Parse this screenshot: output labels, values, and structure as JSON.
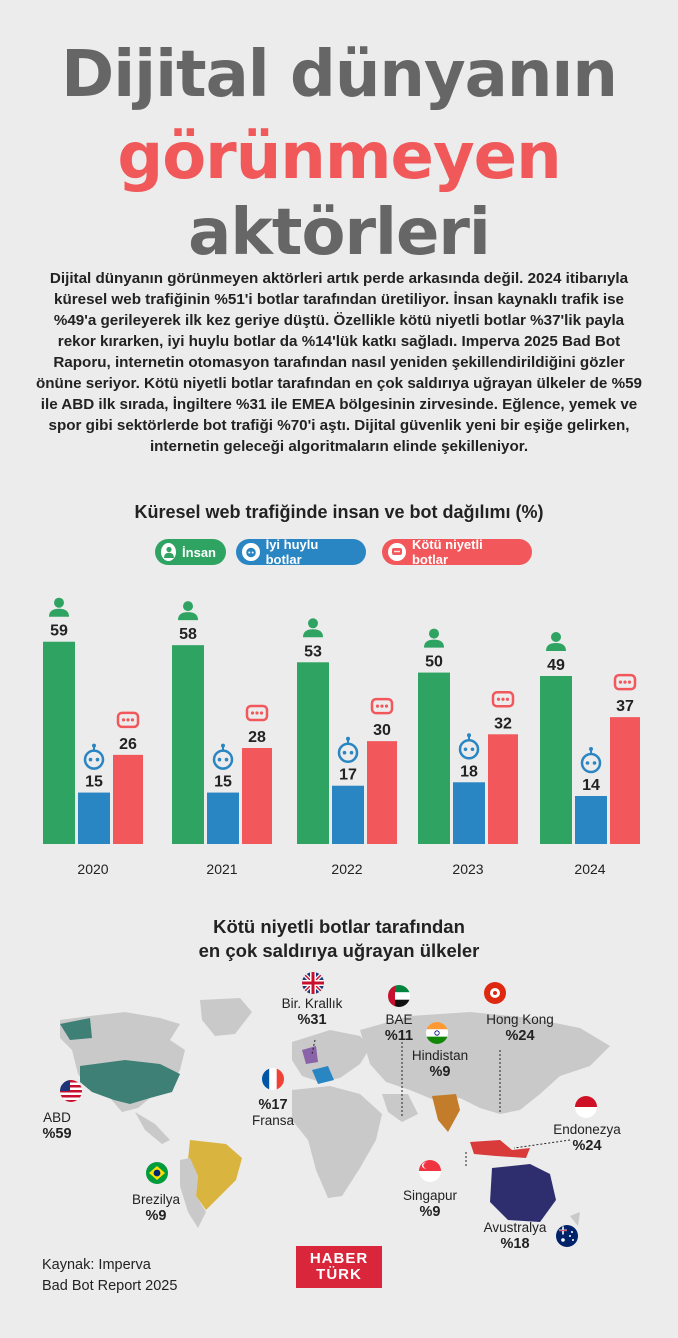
{
  "title": {
    "line1": "Dijital dünyanın",
    "line2": "görünmeyen",
    "line3": "aktörleri"
  },
  "intro": "Dijital dünyanın görünmeyen aktörleri artık perde arkasında değil. 2024 itibarıyla küresel web trafiğinin %51'i botlar tarafından üretiliyor. İnsan kaynaklı trafik ise %49'a gerileyerek ilk kez geriye düştü. Özellikle kötü niyetli botlar %37'lik payla rekor kırarken, iyi huylu botlar da %14'lük katkı sağladı. Imperva 2025 Bad Bot Raporu, internetin otomasyon tarafından nasıl yeniden şekillendirildiğini gözler önüne seriyor. Kötü niyetli botlar tarafından en çok saldırıya uğrayan ülkeler de %59 ile ABD ilk sırada, İngiltere %31 ile EMEA bölgesinin zirvesinde. Eğlence, yemek ve spor gibi sektörlerde bot trafiği %70'i aştı. Dijital güvenlik yeni bir eşiğe gelirken, internetin geleceği algoritmaların elinde şekilleniyor.",
  "chart_data": {
    "type": "bar",
    "title": "Küresel web trafiğinde insan ve bot dağılımı (%)",
    "categories": [
      "2020",
      "2021",
      "2022",
      "2023",
      "2024"
    ],
    "series": [
      {
        "name": "İnsan",
        "color": "#2fa462",
        "values": [
          59,
          58,
          53,
          50,
          49
        ]
      },
      {
        "name": "İyi huylu botlar",
        "color": "#2a86c2",
        "values": [
          15,
          15,
          17,
          18,
          14
        ]
      },
      {
        "name": "Kötü niyetli botlar",
        "color": "#f2585b",
        "values": [
          26,
          28,
          30,
          32,
          37
        ]
      }
    ],
    "ylim": [
      0,
      70
    ],
    "xlabel": "",
    "ylabel": ""
  },
  "legend": {
    "human": "İnsan",
    "good": "İyi huylu botlar",
    "bad": "Kötü niyetli botlar"
  },
  "colors": {
    "human": "#2fa462",
    "good": "#2a86c2",
    "bad": "#f2585b",
    "title_red": "#f0585a",
    "title_grey": "#666666"
  },
  "map": {
    "title_line1": "Kötü niyetli botlar tarafından",
    "title_line2": "en çok saldırıya uğrayan ülkeler",
    "countries": [
      {
        "name": "ABD",
        "value": "%59"
      },
      {
        "name": "Bir. Krallık",
        "value": "%31"
      },
      {
        "name": "BAE",
        "value": "%11"
      },
      {
        "name": "Hong Kong",
        "value": "%24"
      },
      {
        "name": "Hindistan",
        "value": "%9"
      },
      {
        "name": "Fransa",
        "value": "%17"
      },
      {
        "name": "Endonezya",
        "value": "%24"
      },
      {
        "name": "Brezilya",
        "value": "%9"
      },
      {
        "name": "Singapur",
        "value": "%9"
      },
      {
        "name": "Avustralya",
        "value": "%18"
      }
    ]
  },
  "source": {
    "line1": "Kaynak: Imperva",
    "line2": "Bad Bot Report 2025"
  },
  "logo": {
    "line1": "HABER",
    "line2": "TÜRK"
  }
}
